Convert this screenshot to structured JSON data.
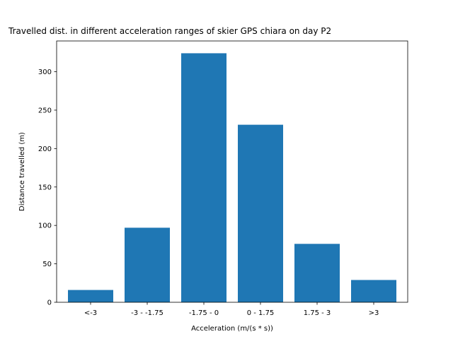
{
  "chart_data": {
    "type": "bar",
    "title": "Travelled dist. in different acceleration ranges of skier GPS chiara on day P2",
    "xlabel": "Acceleration (m/(s * s))",
    "ylabel": "Distance travelled (m)",
    "categories": [
      "<-3",
      "-3 - -1.75",
      "-1.75 - 0",
      "0 - 1.75",
      "1.75 - 3",
      ">3"
    ],
    "values": [
      16,
      97,
      324,
      231,
      76,
      29
    ],
    "ylim": [
      0,
      340
    ],
    "yticks": [
      0,
      50,
      100,
      150,
      200,
      250,
      300
    ],
    "grid": false,
    "bar_color": "#1f77b4"
  }
}
